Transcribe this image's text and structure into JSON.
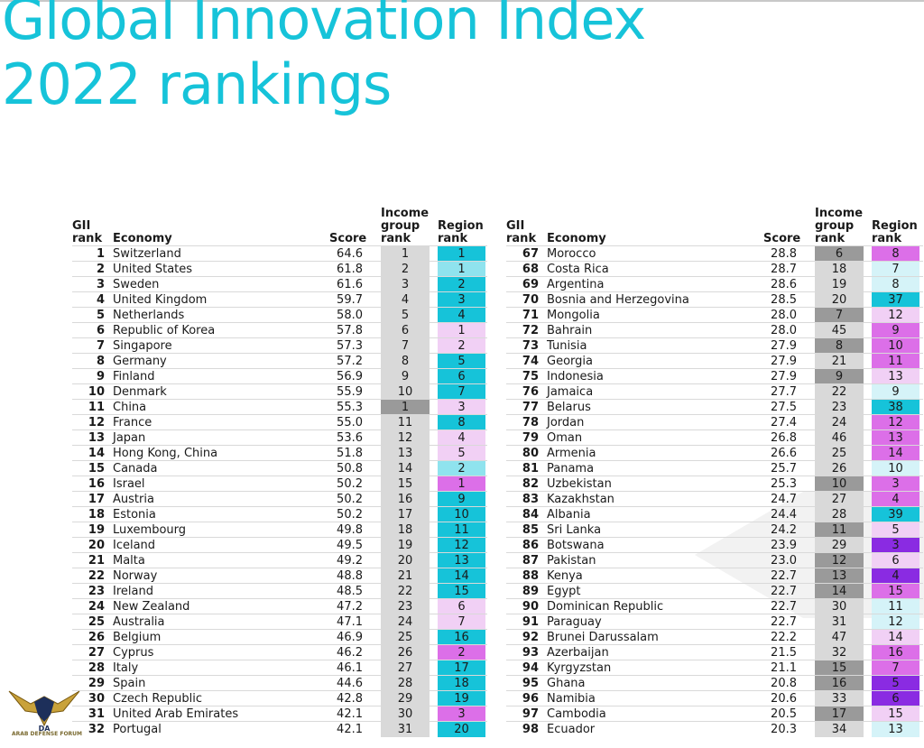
{
  "title": {
    "line1": "Global Innovation Index",
    "line2": "2022 rankings"
  },
  "headers": {
    "gii_rank_1": "GII",
    "gii_rank_2": "rank",
    "economy": "Economy",
    "score": "Score",
    "income_1": "Income",
    "income_2": "group",
    "income_3": "rank",
    "region_1": "Region",
    "region_2": "rank"
  },
  "colors": {
    "title": "#16c3d9",
    "income_gray": "#d9d9d9",
    "income_dark": "#9a9a9a",
    "region_cyan": "#16c3d9",
    "region_light_cyan": "#8fe3ee",
    "region_pale_cyan": "#d5f3f8",
    "region_light_pink": "#f1d0f5",
    "region_pink": "#dc6fe8",
    "region_violet": "#b44ae0",
    "region_purple": "#8a2be2"
  },
  "left": [
    {
      "rank": "1",
      "economy": "Switzerland",
      "score": "64.6",
      "income": "1",
      "region": "1",
      "ibg": "#d9d9d9",
      "rbg": "#16c3d9"
    },
    {
      "rank": "2",
      "economy": "United States",
      "score": "61.8",
      "income": "2",
      "region": "1",
      "ibg": "#d9d9d9",
      "rbg": "#8fe3ee"
    },
    {
      "rank": "3",
      "economy": "Sweden",
      "score": "61.6",
      "income": "3",
      "region": "2",
      "ibg": "#d9d9d9",
      "rbg": "#16c3d9"
    },
    {
      "rank": "4",
      "economy": "United Kingdom",
      "score": "59.7",
      "income": "4",
      "region": "3",
      "ibg": "#d9d9d9",
      "rbg": "#16c3d9"
    },
    {
      "rank": "5",
      "economy": "Netherlands",
      "score": "58.0",
      "income": "5",
      "region": "4",
      "ibg": "#d9d9d9",
      "rbg": "#16c3d9"
    },
    {
      "rank": "6",
      "economy": "Republic of Korea",
      "score": "57.8",
      "income": "6",
      "region": "1",
      "ibg": "#d9d9d9",
      "rbg": "#f1d0f5"
    },
    {
      "rank": "7",
      "economy": "Singapore",
      "score": "57.3",
      "income": "7",
      "region": "2",
      "ibg": "#d9d9d9",
      "rbg": "#f1d0f5"
    },
    {
      "rank": "8",
      "economy": "Germany",
      "score": "57.2",
      "income": "8",
      "region": "5",
      "ibg": "#d9d9d9",
      "rbg": "#16c3d9"
    },
    {
      "rank": "9",
      "economy": "Finland",
      "score": "56.9",
      "income": "9",
      "region": "6",
      "ibg": "#d9d9d9",
      "rbg": "#16c3d9"
    },
    {
      "rank": "10",
      "economy": "Denmark",
      "score": "55.9",
      "income": "10",
      "region": "7",
      "ibg": "#d9d9d9",
      "rbg": "#16c3d9"
    },
    {
      "rank": "11",
      "economy": "China",
      "score": "55.3",
      "income": "1",
      "region": "3",
      "ibg": "#9a9a9a",
      "rbg": "#f1d0f5"
    },
    {
      "rank": "12",
      "economy": "France",
      "score": "55.0",
      "income": "11",
      "region": "8",
      "ibg": "#d9d9d9",
      "rbg": "#16c3d9"
    },
    {
      "rank": "13",
      "economy": "Japan",
      "score": "53.6",
      "income": "12",
      "region": "4",
      "ibg": "#d9d9d9",
      "rbg": "#f1d0f5"
    },
    {
      "rank": "14",
      "economy": "Hong Kong, China",
      "score": "51.8",
      "income": "13",
      "region": "5",
      "ibg": "#d9d9d9",
      "rbg": "#f1d0f5"
    },
    {
      "rank": "15",
      "economy": "Canada",
      "score": "50.8",
      "income": "14",
      "region": "2",
      "ibg": "#d9d9d9",
      "rbg": "#8fe3ee"
    },
    {
      "rank": "16",
      "economy": "Israel",
      "score": "50.2",
      "income": "15",
      "region": "1",
      "ibg": "#d9d9d9",
      "rbg": "#dc6fe8"
    },
    {
      "rank": "17",
      "economy": "Austria",
      "score": "50.2",
      "income": "16",
      "region": "9",
      "ibg": "#d9d9d9",
      "rbg": "#16c3d9"
    },
    {
      "rank": "18",
      "economy": "Estonia",
      "score": "50.2",
      "income": "17",
      "region": "10",
      "ibg": "#d9d9d9",
      "rbg": "#16c3d9"
    },
    {
      "rank": "19",
      "economy": "Luxembourg",
      "score": "49.8",
      "income": "18",
      "region": "11",
      "ibg": "#d9d9d9",
      "rbg": "#16c3d9"
    },
    {
      "rank": "20",
      "economy": "Iceland",
      "score": "49.5",
      "income": "19",
      "region": "12",
      "ibg": "#d9d9d9",
      "rbg": "#16c3d9"
    },
    {
      "rank": "21",
      "economy": "Malta",
      "score": "49.2",
      "income": "20",
      "region": "13",
      "ibg": "#d9d9d9",
      "rbg": "#16c3d9"
    },
    {
      "rank": "22",
      "economy": "Norway",
      "score": "48.8",
      "income": "21",
      "region": "14",
      "ibg": "#d9d9d9",
      "rbg": "#16c3d9"
    },
    {
      "rank": "23",
      "economy": "Ireland",
      "score": "48.5",
      "income": "22",
      "region": "15",
      "ibg": "#d9d9d9",
      "rbg": "#16c3d9"
    },
    {
      "rank": "24",
      "economy": "New Zealand",
      "score": "47.2",
      "income": "23",
      "region": "6",
      "ibg": "#d9d9d9",
      "rbg": "#f1d0f5"
    },
    {
      "rank": "25",
      "economy": "Australia",
      "score": "47.1",
      "income": "24",
      "region": "7",
      "ibg": "#d9d9d9",
      "rbg": "#f1d0f5"
    },
    {
      "rank": "26",
      "economy": "Belgium",
      "score": "46.9",
      "income": "25",
      "region": "16",
      "ibg": "#d9d9d9",
      "rbg": "#16c3d9"
    },
    {
      "rank": "27",
      "economy": "Cyprus",
      "score": "46.2",
      "income": "26",
      "region": "2",
      "ibg": "#d9d9d9",
      "rbg": "#dc6fe8"
    },
    {
      "rank": "28",
      "economy": "Italy",
      "score": "46.1",
      "income": "27",
      "region": "17",
      "ibg": "#d9d9d9",
      "rbg": "#16c3d9"
    },
    {
      "rank": "29",
      "economy": "Spain",
      "score": "44.6",
      "income": "28",
      "region": "18",
      "ibg": "#d9d9d9",
      "rbg": "#16c3d9"
    },
    {
      "rank": "30",
      "economy": "Czech Republic",
      "score": "42.8",
      "income": "29",
      "region": "19",
      "ibg": "#d9d9d9",
      "rbg": "#16c3d9"
    },
    {
      "rank": "31",
      "economy": "United Arab Emirates",
      "score": "42.1",
      "income": "30",
      "region": "3",
      "ibg": "#d9d9d9",
      "rbg": "#dc6fe8"
    },
    {
      "rank": "32",
      "economy": "Portugal",
      "score": "42.1",
      "income": "31",
      "region": "20",
      "ibg": "#d9d9d9",
      "rbg": "#16c3d9"
    }
  ],
  "right": [
    {
      "rank": "67",
      "economy": "Morocco",
      "score": "28.8",
      "income": "6",
      "region": "8",
      "ibg": "#9a9a9a",
      "rbg": "#dc6fe8"
    },
    {
      "rank": "68",
      "economy": "Costa Rica",
      "score": "28.7",
      "income": "18",
      "region": "7",
      "ibg": "#d9d9d9",
      "rbg": "#d5f3f8"
    },
    {
      "rank": "69",
      "economy": "Argentina",
      "score": "28.6",
      "income": "19",
      "region": "8",
      "ibg": "#d9d9d9",
      "rbg": "#d5f3f8"
    },
    {
      "rank": "70",
      "economy": "Bosnia and Herzegovina",
      "score": "28.5",
      "income": "20",
      "region": "37",
      "ibg": "#d9d9d9",
      "rbg": "#16c3d9"
    },
    {
      "rank": "71",
      "economy": "Mongolia",
      "score": "28.0",
      "income": "7",
      "region": "12",
      "ibg": "#9a9a9a",
      "rbg": "#f1d0f5"
    },
    {
      "rank": "72",
      "economy": "Bahrain",
      "score": "28.0",
      "income": "45",
      "region": "9",
      "ibg": "#d9d9d9",
      "rbg": "#dc6fe8"
    },
    {
      "rank": "73",
      "economy": "Tunisia",
      "score": "27.9",
      "income": "8",
      "region": "10",
      "ibg": "#9a9a9a",
      "rbg": "#dc6fe8"
    },
    {
      "rank": "74",
      "economy": "Georgia",
      "score": "27.9",
      "income": "21",
      "region": "11",
      "ibg": "#d9d9d9",
      "rbg": "#dc6fe8"
    },
    {
      "rank": "75",
      "economy": "Indonesia",
      "score": "27.9",
      "income": "9",
      "region": "13",
      "ibg": "#9a9a9a",
      "rbg": "#f1d0f5"
    },
    {
      "rank": "76",
      "economy": "Jamaica",
      "score": "27.7",
      "income": "22",
      "region": "9",
      "ibg": "#d9d9d9",
      "rbg": "#d5f3f8"
    },
    {
      "rank": "77",
      "economy": "Belarus",
      "score": "27.5",
      "income": "23",
      "region": "38",
      "ibg": "#d9d9d9",
      "rbg": "#16c3d9"
    },
    {
      "rank": "78",
      "economy": "Jordan",
      "score": "27.4",
      "income": "24",
      "region": "12",
      "ibg": "#d9d9d9",
      "rbg": "#dc6fe8"
    },
    {
      "rank": "79",
      "economy": "Oman",
      "score": "26.8",
      "income": "46",
      "region": "13",
      "ibg": "#d9d9d9",
      "rbg": "#dc6fe8"
    },
    {
      "rank": "80",
      "economy": "Armenia",
      "score": "26.6",
      "income": "25",
      "region": "14",
      "ibg": "#d9d9d9",
      "rbg": "#dc6fe8"
    },
    {
      "rank": "81",
      "economy": "Panama",
      "score": "25.7",
      "income": "26",
      "region": "10",
      "ibg": "#d9d9d9",
      "rbg": "#d5f3f8"
    },
    {
      "rank": "82",
      "economy": "Uzbekistan",
      "score": "25.3",
      "income": "10",
      "region": "3",
      "ibg": "#9a9a9a",
      "rbg": "#dc6fe8"
    },
    {
      "rank": "83",
      "economy": "Kazakhstan",
      "score": "24.7",
      "income": "27",
      "region": "4",
      "ibg": "#d9d9d9",
      "rbg": "#dc6fe8"
    },
    {
      "rank": "84",
      "economy": "Albania",
      "score": "24.4",
      "income": "28",
      "region": "39",
      "ibg": "#d9d9d9",
      "rbg": "#16c3d9"
    },
    {
      "rank": "85",
      "economy": "Sri Lanka",
      "score": "24.2",
      "income": "11",
      "region": "5",
      "ibg": "#9a9a9a",
      "rbg": "#f1d0f5"
    },
    {
      "rank": "86",
      "economy": "Botswana",
      "score": "23.9",
      "income": "29",
      "region": "3",
      "ibg": "#d9d9d9",
      "rbg": "#8a2be2"
    },
    {
      "rank": "87",
      "economy": "Pakistan",
      "score": "23.0",
      "income": "12",
      "region": "6",
      "ibg": "#9a9a9a",
      "rbg": "#f1d0f5"
    },
    {
      "rank": "88",
      "economy": "Kenya",
      "score": "22.7",
      "income": "13",
      "region": "4",
      "ibg": "#9a9a9a",
      "rbg": "#8a2be2"
    },
    {
      "rank": "89",
      "economy": "Egypt",
      "score": "22.7",
      "income": "14",
      "region": "15",
      "ibg": "#9a9a9a",
      "rbg": "#dc6fe8"
    },
    {
      "rank": "90",
      "economy": "Dominican Republic",
      "score": "22.7",
      "income": "30",
      "region": "11",
      "ibg": "#d9d9d9",
      "rbg": "#d5f3f8"
    },
    {
      "rank": "91",
      "economy": "Paraguay",
      "score": "22.7",
      "income": "31",
      "region": "12",
      "ibg": "#d9d9d9",
      "rbg": "#d5f3f8"
    },
    {
      "rank": "92",
      "economy": "Brunei Darussalam",
      "score": "22.2",
      "income": "47",
      "region": "14",
      "ibg": "#d9d9d9",
      "rbg": "#f1d0f5"
    },
    {
      "rank": "93",
      "economy": "Azerbaijan",
      "score": "21.5",
      "income": "32",
      "region": "16",
      "ibg": "#d9d9d9",
      "rbg": "#dc6fe8"
    },
    {
      "rank": "94",
      "economy": "Kyrgyzstan",
      "score": "21.1",
      "income": "15",
      "region": "7",
      "ibg": "#9a9a9a",
      "rbg": "#dc6fe8"
    },
    {
      "rank": "95",
      "economy": "Ghana",
      "score": "20.8",
      "income": "16",
      "region": "5",
      "ibg": "#9a9a9a",
      "rbg": "#8a2be2"
    },
    {
      "rank": "96",
      "economy": "Namibia",
      "score": "20.6",
      "income": "33",
      "region": "6",
      "ibg": "#d9d9d9",
      "rbg": "#8a2be2"
    },
    {
      "rank": "97",
      "economy": "Cambodia",
      "score": "20.5",
      "income": "17",
      "region": "15",
      "ibg": "#9a9a9a",
      "rbg": "#f1d0f5"
    },
    {
      "rank": "98",
      "economy": "Ecuador",
      "score": "20.3",
      "income": "34",
      "region": "13",
      "ibg": "#d9d9d9",
      "rbg": "#d5f3f8"
    }
  ],
  "watermark": {
    "label": "ARAB DEFENSE FORUM",
    "initials": "DA"
  }
}
